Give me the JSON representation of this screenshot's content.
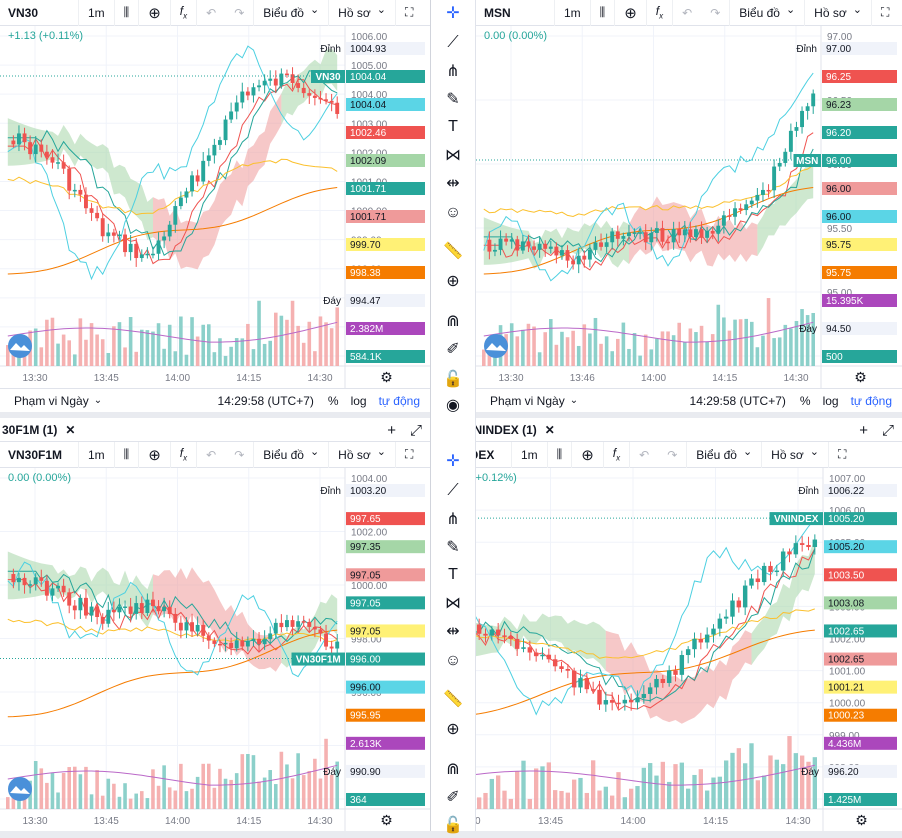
{
  "panels": [
    {
      "id": "p1",
      "title": "",
      "symbol": "VN30",
      "interval": "1m",
      "chart_type_label": "Biểu đồ",
      "profile_label": "Hồ sơ",
      "change": "+1.13 (+0.11%)",
      "bottom": {
        "range": "Phạm vi Ngày",
        "time": "14:29:58 (UTC+7)",
        "percent": "%",
        "log": "log",
        "auto": "tự động"
      },
      "price_ticks": [
        "1006.00",
        "1005.00",
        "1004.00",
        "1003.00",
        "1002.00",
        "1001.00",
        "1000.00",
        "999.00",
        "998.00",
        "997.00",
        "996.00",
        "995.00"
      ],
      "time_ticks": [
        "13:30",
        "13:45",
        "14:00",
        "14:15",
        "14:30"
      ],
      "labels": [
        {
          "text": "Đỉnh",
          "value": "1004.93",
          "kind": "plain",
          "color": "#131722",
          "bg": "#f0f3fa"
        },
        {
          "text": "VN30",
          "value": "1004.04",
          "kind": "tag",
          "color": "#ffffff",
          "bg": "#26a69a"
        },
        {
          "text": "",
          "value": "1004.04",
          "kind": "box",
          "color": "#131722",
          "bg": "#5bd5e6"
        },
        {
          "text": "",
          "value": "1002.46",
          "kind": "box",
          "color": "#ffffff",
          "bg": "#ef5350"
        },
        {
          "text": "",
          "value": "1002.09",
          "kind": "box",
          "color": "#131722",
          "bg": "#a5d6a7"
        },
        {
          "text": "",
          "value": "1001.71",
          "kind": "box",
          "color": "#ffffff",
          "bg": "#26a69a"
        },
        {
          "text": "",
          "value": "1001.71",
          "kind": "box",
          "color": "#131722",
          "bg": "#ef9a9a"
        },
        {
          "text": "",
          "value": "999.70",
          "kind": "box",
          "color": "#131722",
          "bg": "#fff176"
        },
        {
          "text": "",
          "value": "998.38",
          "kind": "box",
          "color": "#ffffff",
          "bg": "#f57c00"
        },
        {
          "text": "Đáy",
          "value": "994.47",
          "kind": "plain",
          "color": "#131722",
          "bg": "#f0f3fa"
        },
        {
          "text": "",
          "value": "2.382M",
          "kind": "box",
          "color": "#ffffff",
          "bg": "#ab47bc"
        },
        {
          "text": "",
          "value": "584.1K",
          "kind": "box",
          "color": "#ffffff",
          "bg": "#26a69a"
        }
      ]
    },
    {
      "id": "p2",
      "title": "",
      "symbol": "MSN",
      "interval": "1m",
      "chart_type_label": "Biểu đồ",
      "profile_label": "Hồ sơ",
      "change": "0.00 (0.00%)",
      "bottom": {
        "range": "Phạm vi Ngày",
        "time": "14:29:58 (UTC+7)",
        "percent": "%",
        "log": "log",
        "auto": "tự động"
      },
      "price_ticks": [
        "97.00",
        "96.50",
        "96.00",
        "95.50",
        "95.00",
        "94.50"
      ],
      "time_ticks": [
        "13:30",
        "13:46",
        "14:00",
        "14:15",
        "14:30"
      ],
      "labels": [
        {
          "text": "Đỉnh",
          "value": "97.00",
          "kind": "plain",
          "color": "#131722",
          "bg": "#f0f3fa"
        },
        {
          "text": "",
          "value": "96.25",
          "kind": "box",
          "color": "#ffffff",
          "bg": "#ef5350"
        },
        {
          "text": "",
          "value": "96.23",
          "kind": "box",
          "color": "#131722",
          "bg": "#a5d6a7"
        },
        {
          "text": "",
          "value": "96.20",
          "kind": "box",
          "color": "#ffffff",
          "bg": "#26a69a"
        },
        {
          "text": "MSN",
          "value": "96.00",
          "kind": "tag",
          "color": "#ffffff",
          "bg": "#26a69a"
        },
        {
          "text": "",
          "value": "96.00",
          "kind": "box",
          "color": "#131722",
          "bg": "#ef9a9a"
        },
        {
          "text": "",
          "value": "96.00",
          "kind": "box",
          "color": "#131722",
          "bg": "#5bd5e6"
        },
        {
          "text": "",
          "value": "95.75",
          "kind": "box",
          "color": "#131722",
          "bg": "#fff176"
        },
        {
          "text": "",
          "value": "95.75",
          "kind": "box",
          "color": "#ffffff",
          "bg": "#f57c00"
        },
        {
          "text": "",
          "value": "15.395K",
          "kind": "box",
          "color": "#ffffff",
          "bg": "#ab47bc"
        },
        {
          "text": "Đáy",
          "value": "94.50",
          "kind": "plain",
          "color": "#131722",
          "bg": "#f0f3fa"
        },
        {
          "text": "",
          "value": "500",
          "kind": "box",
          "color": "#ffffff",
          "bg": "#26a69a"
        }
      ]
    },
    {
      "id": "p3",
      "title": "30F1M (1)",
      "symbol": "VN30F1M",
      "interval": "1m",
      "chart_type_label": "Biểu đồ",
      "profile_label": "Hồ sơ",
      "change": "0.00 (0.00%)",
      "bottom": null,
      "price_ticks": [
        "1004.00",
        "1002.00",
        "1000.00",
        "998.00",
        "996.00",
        "994.00",
        "992.00"
      ],
      "time_ticks": [
        "13:30",
        "13:45",
        "14:00",
        "14:15",
        "14:30"
      ],
      "labels": [
        {
          "text": "Đỉnh",
          "value": "1003.20",
          "kind": "plain",
          "color": "#131722",
          "bg": "#f0f3fa"
        },
        {
          "text": "",
          "value": "997.65",
          "kind": "box",
          "color": "#ffffff",
          "bg": "#ef5350"
        },
        {
          "text": "",
          "value": "997.35",
          "kind": "box",
          "color": "#131722",
          "bg": "#a5d6a7"
        },
        {
          "text": "",
          "value": "997.05",
          "kind": "box",
          "color": "#131722",
          "bg": "#ef9a9a"
        },
        {
          "text": "",
          "value": "997.05",
          "kind": "box",
          "color": "#ffffff",
          "bg": "#26a69a"
        },
        {
          "text": "",
          "value": "997.05",
          "kind": "box",
          "color": "#131722",
          "bg": "#fff176"
        },
        {
          "text": "VN30F1M",
          "value": "996.00",
          "kind": "tag",
          "color": "#ffffff",
          "bg": "#26a69a"
        },
        {
          "text": "",
          "value": "996.00",
          "kind": "box",
          "color": "#131722",
          "bg": "#5bd5e6"
        },
        {
          "text": "",
          "value": "995.95",
          "kind": "box",
          "color": "#ffffff",
          "bg": "#f57c00"
        },
        {
          "text": "",
          "value": "2.613K",
          "kind": "box",
          "color": "#ffffff",
          "bg": "#ab47bc"
        },
        {
          "text": "Đáy",
          "value": "990.90",
          "kind": "plain",
          "color": "#131722",
          "bg": "#f0f3fa"
        },
        {
          "text": "",
          "value": "364",
          "kind": "box",
          "color": "#ffffff",
          "bg": "#26a69a"
        }
      ]
    },
    {
      "id": "p4",
      "title": "VNINDEX (1)",
      "symbol": "VNINDEX",
      "interval": "1m",
      "chart_type_label": "Biểu đồ",
      "profile_label": "Hồ sơ",
      "change": "+1.18 (+0.12%)",
      "bottom": null,
      "price_ticks": [
        "1007.00",
        "1006.00",
        "1005.00",
        "1004.00",
        "1003.00",
        "1002.00",
        "1001.00",
        "1000.00",
        "999.00",
        "998.00",
        "997.00"
      ],
      "time_ticks": [
        "13:30",
        "13:45",
        "14:00",
        "14:15",
        "14:30"
      ],
      "labels": [
        {
          "text": "Đỉnh",
          "value": "1006.22",
          "kind": "plain",
          "color": "#131722",
          "bg": "#f0f3fa"
        },
        {
          "text": "VNINDEX",
          "value": "1005.20",
          "kind": "tag",
          "color": "#ffffff",
          "bg": "#26a69a"
        },
        {
          "text": "",
          "value": "1005.20",
          "kind": "box",
          "color": "#131722",
          "bg": "#5bd5e6"
        },
        {
          "text": "",
          "value": "1003.50",
          "kind": "box",
          "color": "#ffffff",
          "bg": "#ef5350"
        },
        {
          "text": "",
          "value": "1003.08",
          "kind": "box",
          "color": "#131722",
          "bg": "#a5d6a7"
        },
        {
          "text": "",
          "value": "1002.65",
          "kind": "box",
          "color": "#ffffff",
          "bg": "#26a69a"
        },
        {
          "text": "",
          "value": "1002.65",
          "kind": "box",
          "color": "#131722",
          "bg": "#ef9a9a"
        },
        {
          "text": "",
          "value": "1001.21",
          "kind": "box",
          "color": "#131722",
          "bg": "#fff176"
        },
        {
          "text": "",
          "value": "1000.23",
          "kind": "box",
          "color": "#ffffff",
          "bg": "#f57c00"
        },
        {
          "text": "",
          "value": "4.436M",
          "kind": "box",
          "color": "#ffffff",
          "bg": "#ab47bc"
        },
        {
          "text": "Đáy",
          "value": "996.20",
          "kind": "plain",
          "color": "#131722",
          "bg": "#f0f3fa"
        },
        {
          "text": "",
          "value": "1.425M",
          "kind": "box",
          "color": "#ffffff",
          "bg": "#26a69a"
        }
      ]
    }
  ],
  "sidebar_tools": [
    "crosshair-icon",
    "trend-line-icon",
    "pitchfork-icon",
    "brush-icon",
    "text-icon",
    "pattern-icon",
    "measure-icon",
    "emoji-icon",
    "ruler-icon",
    "zoom-in-icon",
    "magnet-icon",
    "lock-drawing-icon",
    "lock-icon",
    "eye-icon"
  ],
  "colors": {
    "up": "#26a69a",
    "down": "#ef5350",
    "cloud_green": "#a5d6a7",
    "cloud_red": "#ef9a9a",
    "accent": "#2962ff"
  }
}
